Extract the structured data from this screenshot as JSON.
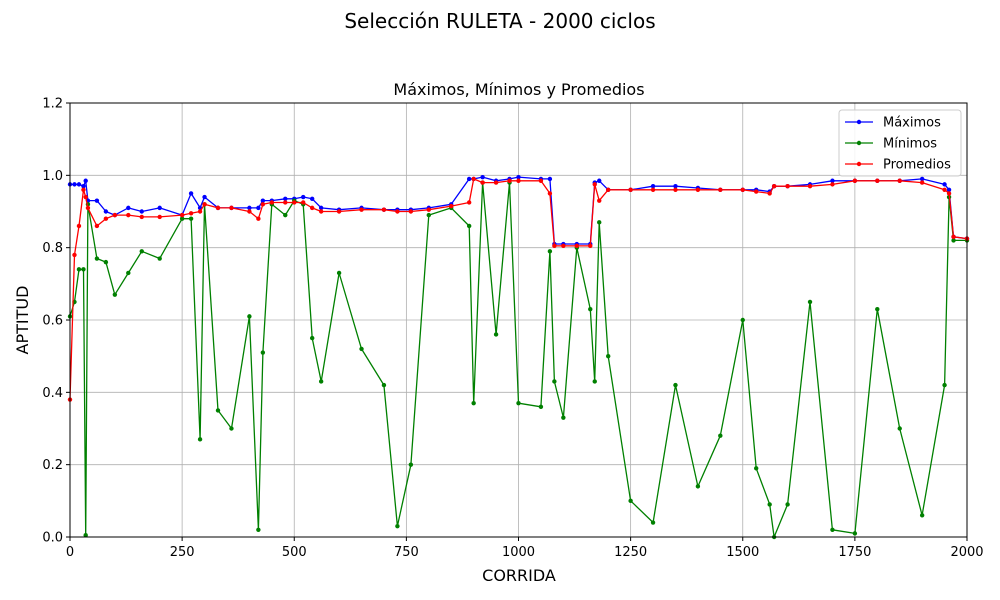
{
  "suptitle": "Selección RULETA - 2000 ciclos",
  "chart_data": {
    "type": "line",
    "title": "Máximos, Mínimos y Promedios",
    "xlabel": "CORRIDA",
    "ylabel": "APTITUD",
    "xlim": [
      0,
      2000
    ],
    "ylim": [
      0,
      1.2
    ],
    "xticks": [
      0,
      250,
      500,
      750,
      1000,
      1250,
      1500,
      1750,
      2000
    ],
    "yticks": [
      0.0,
      0.2,
      0.4,
      0.6,
      0.8,
      1.0,
      1.2
    ],
    "xtick_labels": [
      "0",
      "250",
      "500",
      "750",
      "1000",
      "1250",
      "1500",
      "1750",
      "2000"
    ],
    "ytick_labels": [
      "0.0",
      "0.2",
      "0.4",
      "0.6",
      "0.8",
      "1.0",
      "1.2"
    ],
    "grid": true,
    "legend_position": "top-right",
    "x": [
      0,
      10,
      20,
      30,
      35,
      40,
      60,
      80,
      100,
      130,
      160,
      200,
      250,
      270,
      290,
      300,
      330,
      360,
      400,
      420,
      430,
      450,
      480,
      500,
      520,
      540,
      560,
      600,
      650,
      700,
      730,
      760,
      800,
      850,
      890,
      900,
      920,
      950,
      980,
      1000,
      1050,
      1070,
      1080,
      1100,
      1130,
      1160,
      1170,
      1180,
      1200,
      1250,
      1300,
      1350,
      1400,
      1450,
      1500,
      1530,
      1560,
      1570,
      1600,
      1650,
      1700,
      1750,
      1800,
      1850,
      1900,
      1950,
      1960,
      1970,
      2000
    ],
    "series": [
      {
        "name": "Máximos",
        "color": "#0000ff",
        "values": [
          0.975,
          0.975,
          0.975,
          0.97,
          0.985,
          0.93,
          0.93,
          0.9,
          0.89,
          0.91,
          0.9,
          0.91,
          0.89,
          0.95,
          0.91,
          0.94,
          0.91,
          0.91,
          0.91,
          0.91,
          0.93,
          0.93,
          0.935,
          0.935,
          0.94,
          0.935,
          0.91,
          0.905,
          0.91,
          0.905,
          0.905,
          0.905,
          0.91,
          0.92,
          0.99,
          0.99,
          0.995,
          0.985,
          0.99,
          0.995,
          0.99,
          0.99,
          0.81,
          0.81,
          0.81,
          0.81,
          0.98,
          0.985,
          0.96,
          0.96,
          0.97,
          0.97,
          0.965,
          0.96,
          0.96,
          0.96,
          0.955,
          0.97,
          0.97,
          0.975,
          0.985,
          0.985,
          0.985,
          0.985,
          0.99,
          0.975,
          0.96,
          0.83,
          0.825
        ]
      },
      {
        "name": "Mínimos",
        "color": "#008000",
        "values": [
          0.61,
          0.65,
          0.74,
          0.74,
          0.005,
          0.92,
          0.77,
          0.76,
          0.67,
          0.73,
          0.79,
          0.77,
          0.88,
          0.88,
          0.27,
          0.92,
          0.35,
          0.3,
          0.61,
          0.02,
          0.51,
          0.92,
          0.89,
          0.93,
          0.92,
          0.55,
          0.43,
          0.73,
          0.52,
          0.42,
          0.03,
          0.2,
          0.89,
          0.91,
          0.86,
          0.37,
          0.98,
          0.56,
          0.98,
          0.37,
          0.36,
          0.79,
          0.43,
          0.33,
          0.8,
          0.63,
          0.43,
          0.87,
          0.5,
          0.1,
          0.04,
          0.42,
          0.14,
          0.28,
          0.6,
          0.19,
          0.09,
          0.0,
          0.09,
          0.65,
          0.02,
          0.01,
          0.63,
          0.3,
          0.06,
          0.42,
          0.94,
          0.82,
          0.82
        ]
      },
      {
        "name": "Promedios",
        "color": "#ff0000",
        "values": [
          0.38,
          0.78,
          0.86,
          0.96,
          0.94,
          0.91,
          0.86,
          0.88,
          0.89,
          0.89,
          0.885,
          0.885,
          0.89,
          0.895,
          0.9,
          0.92,
          0.91,
          0.91,
          0.9,
          0.88,
          0.92,
          0.925,
          0.925,
          0.925,
          0.925,
          0.91,
          0.9,
          0.9,
          0.905,
          0.905,
          0.9,
          0.9,
          0.905,
          0.915,
          0.925,
          0.99,
          0.98,
          0.98,
          0.985,
          0.985,
          0.985,
          0.95,
          0.805,
          0.805,
          0.805,
          0.805,
          0.975,
          0.93,
          0.96,
          0.96,
          0.96,
          0.96,
          0.96,
          0.96,
          0.96,
          0.955,
          0.95,
          0.97,
          0.97,
          0.97,
          0.975,
          0.985,
          0.985,
          0.985,
          0.98,
          0.96,
          0.95,
          0.83,
          0.825
        ]
      }
    ]
  }
}
